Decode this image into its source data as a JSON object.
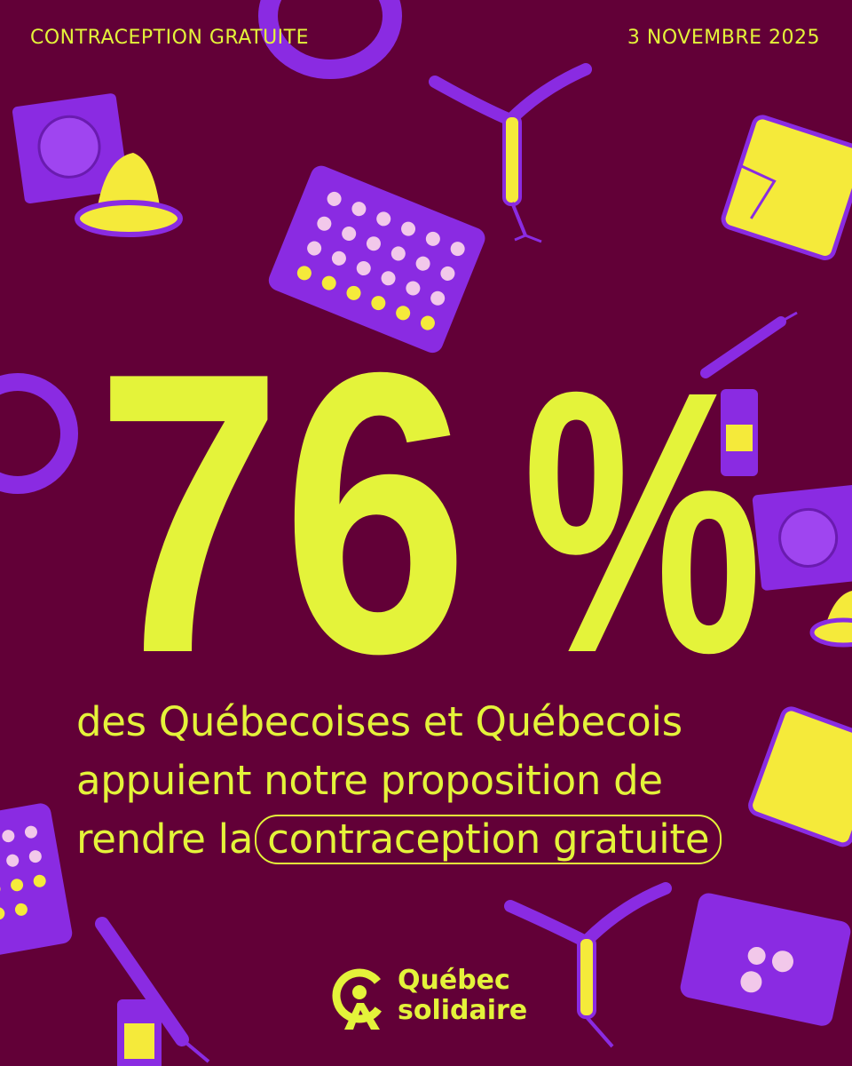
{
  "header": {
    "topic": "CONTRACEPTION GRATUITE",
    "date": "3 NOVEMBRE 2025"
  },
  "stat": {
    "number": "76",
    "symbol": "%",
    "value_percent": 76
  },
  "caption": {
    "line1": "des Québecoises et Québecois",
    "line2": "appuient notre proposition de",
    "line3_prefix": "rendre la",
    "highlight": "contraception gratuite"
  },
  "brand": {
    "line1": "Québec",
    "line2": "solidaire"
  },
  "colors": {
    "background": "#620037",
    "accent": "#e4f33a",
    "illustration_purple": "#8a2be2",
    "illustration_yellow": "#f5ea3a"
  },
  "illustrations": [
    "condom-packet-icon",
    "condom-icon",
    "iud-icon",
    "pill-pack-icon",
    "patch-icon",
    "vaginal-ring-icon",
    "syringe-icon",
    "vial-icon"
  ]
}
